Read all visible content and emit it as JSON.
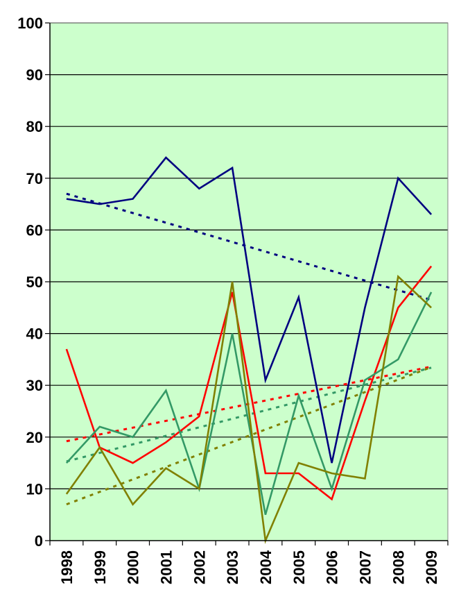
{
  "chart_data": {
    "type": "line",
    "title": "",
    "xlabel": "",
    "ylabel": "",
    "categories": [
      "1998",
      "1999",
      "2000",
      "2001",
      "2002",
      "2003",
      "2004",
      "2005",
      "2006",
      "2007",
      "2008",
      "2009"
    ],
    "ylim": [
      0,
      100
    ],
    "yticks": [
      "0",
      "10",
      "20",
      "30",
      "40",
      "50",
      "60",
      "70",
      "80",
      "90",
      "100"
    ],
    "grid": true,
    "legend": "none",
    "plot_background": "#CCFFCC",
    "series": [
      {
        "color": "#000080",
        "values": [
          66,
          65,
          66,
          74,
          68,
          72,
          31,
          47,
          15,
          45,
          70,
          63
        ],
        "trendline": {
          "start": 67,
          "end": 46.5
        }
      },
      {
        "color": "#FF0000",
        "values": [
          37,
          18,
          15,
          19,
          24,
          48,
          13,
          13,
          8,
          27,
          45,
          53
        ],
        "trendline": {
          "start": 19.2,
          "end": 33.6
        }
      },
      {
        "color": "#339966",
        "values": [
          15,
          22,
          20,
          29,
          10,
          40,
          5,
          28,
          10,
          31,
          35,
          48
        ],
        "trendline": {
          "start": 15.3,
          "end": 33.4
        }
      },
      {
        "color": "#808000",
        "values": [
          9,
          18,
          7,
          14,
          10,
          50,
          0,
          15,
          13,
          12,
          51,
          45
        ],
        "trendline": {
          "start": 7,
          "end": 33.5
        }
      }
    ]
  }
}
